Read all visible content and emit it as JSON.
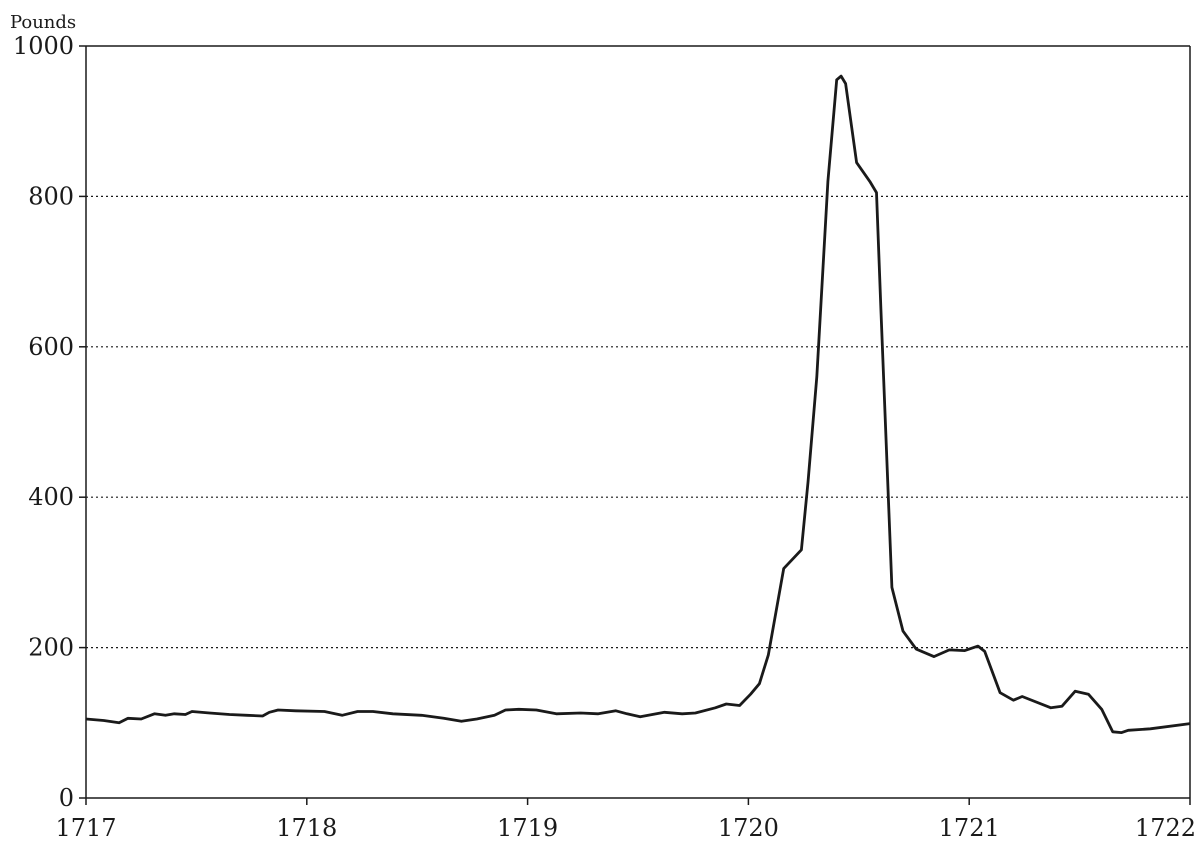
{
  "chart_data": {
    "type": "line",
    "title": "",
    "xlabel": "",
    "ylabel": "Pounds",
    "xlim": [
      1717,
      1722
    ],
    "ylim": [
      0,
      1000
    ],
    "x_ticks": [
      1717,
      1718,
      1719,
      1720,
      1721,
      1722
    ],
    "y_ticks": [
      0,
      200,
      400,
      600,
      800,
      1000
    ],
    "grid": "horizontal dotted at 200, 400, 600, 800",
    "legend": "none",
    "series": [
      {
        "line_color": "#1a1a1a",
        "x": [
          1717.0,
          1717.08,
          1717.15,
          1717.19,
          1717.25,
          1717.31,
          1717.36,
          1717.4,
          1717.45,
          1717.48,
          1717.56,
          1717.65,
          1717.73,
          1717.8,
          1717.83,
          1717.87,
          1717.95,
          1718.08,
          1718.16,
          1718.23,
          1718.3,
          1718.39,
          1718.52,
          1718.62,
          1718.7,
          1718.77,
          1718.85,
          1718.9,
          1718.96,
          1719.04,
          1719.13,
          1719.24,
          1719.32,
          1719.4,
          1719.45,
          1719.51,
          1719.62,
          1719.7,
          1719.76,
          1719.85,
          1719.9,
          1719.96,
          1720.01,
          1720.05,
          1720.09,
          1720.16,
          1720.24,
          1720.27,
          1720.31,
          1720.36,
          1720.4,
          1720.42,
          1720.44,
          1720.49,
          1720.55,
          1720.58,
          1720.6,
          1720.65,
          1720.7,
          1720.76,
          1720.84,
          1720.91,
          1720.98,
          1721.04,
          1721.07,
          1721.14,
          1721.2,
          1721.24,
          1721.37,
          1721.42,
          1721.48,
          1721.54,
          1721.6,
          1721.65,
          1721.69,
          1721.72,
          1721.82,
          1722.0
        ],
        "y": [
          105,
          103,
          100,
          106,
          105,
          112,
          110,
          112,
          111,
          115,
          113,
          111,
          110,
          109,
          114,
          117,
          116,
          115,
          110,
          115,
          115,
          112,
          110,
          106,
          102,
          105,
          110,
          117,
          118,
          117,
          112,
          113,
          112,
          116,
          112,
          108,
          114,
          112,
          113,
          120,
          125,
          123,
          138,
          152,
          190,
          305,
          330,
          420,
          560,
          820,
          955,
          960,
          950,
          845,
          820,
          805,
          650,
          280,
          222,
          198,
          188,
          197,
          196,
          202,
          195,
          140,
          130,
          135,
          120,
          122,
          142,
          138,
          118,
          88,
          87,
          90,
          92,
          99
        ]
      }
    ]
  }
}
